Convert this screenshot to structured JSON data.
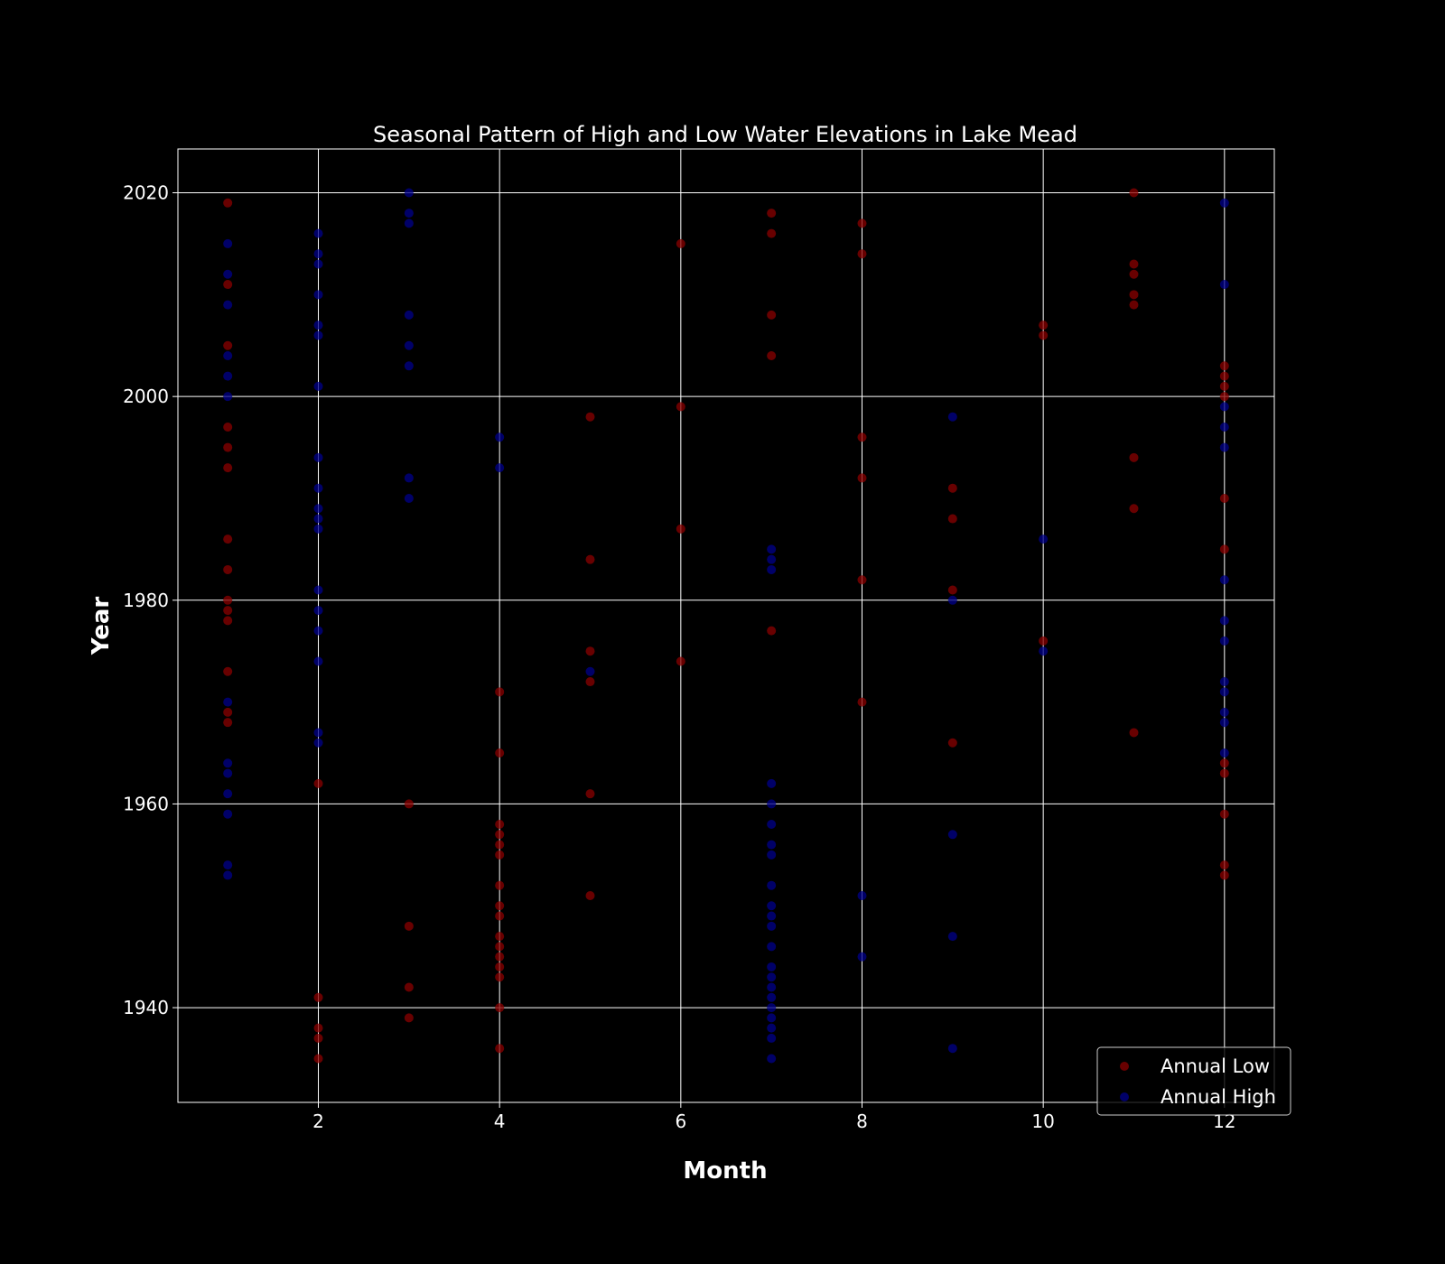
{
  "chart_data": {
    "type": "scatter",
    "title": "Seasonal Pattern of High and Low Water Elevations in Lake Mead",
    "xlabel": "Month",
    "ylabel": "Year",
    "xlim": [
      0.45,
      12.55
    ],
    "ylim": [
      1930.7,
      2024.3
    ],
    "xticks": [
      2,
      4,
      6,
      8,
      10,
      12
    ],
    "yticks": [
      1940,
      1960,
      1980,
      2000,
      2020
    ],
    "grid": true,
    "legend_position": "lower right",
    "background": "#000000",
    "series": [
      {
        "name": "Annual Low",
        "color": "#8b0000",
        "points": [
          [
            1,
            2019
          ],
          [
            1,
            2011
          ],
          [
            1,
            2005
          ],
          [
            1,
            1997
          ],
          [
            1,
            1995
          ],
          [
            1,
            1993
          ],
          [
            1,
            1986
          ],
          [
            1,
            1983
          ],
          [
            1,
            1980
          ],
          [
            1,
            1979
          ],
          [
            1,
            1978
          ],
          [
            1,
            1973
          ],
          [
            1,
            1969
          ],
          [
            1,
            1968
          ],
          [
            2,
            1962
          ],
          [
            2,
            1941
          ],
          [
            2,
            1938
          ],
          [
            2,
            1937
          ],
          [
            2,
            1935
          ],
          [
            3,
            1960
          ],
          [
            3,
            1948
          ],
          [
            3,
            1942
          ],
          [
            3,
            1939
          ],
          [
            4,
            1971
          ],
          [
            4,
            1965
          ],
          [
            4,
            1958
          ],
          [
            4,
            1957
          ],
          [
            4,
            1956
          ],
          [
            4,
            1955
          ],
          [
            4,
            1952
          ],
          [
            4,
            1950
          ],
          [
            4,
            1949
          ],
          [
            4,
            1947
          ],
          [
            4,
            1946
          ],
          [
            4,
            1945
          ],
          [
            4,
            1944
          ],
          [
            4,
            1943
          ],
          [
            4,
            1940
          ],
          [
            4,
            1936
          ],
          [
            5,
            1998
          ],
          [
            5,
            1984
          ],
          [
            5,
            1975
          ],
          [
            5,
            1972
          ],
          [
            5,
            1961
          ],
          [
            5,
            1951
          ],
          [
            6,
            2015
          ],
          [
            6,
            1999
          ],
          [
            6,
            1987
          ],
          [
            6,
            1974
          ],
          [
            7,
            2018
          ],
          [
            7,
            2016
          ],
          [
            7,
            2008
          ],
          [
            7,
            2004
          ],
          [
            7,
            1977
          ],
          [
            8,
            2017
          ],
          [
            8,
            2014
          ],
          [
            8,
            1996
          ],
          [
            8,
            1992
          ],
          [
            8,
            1982
          ],
          [
            8,
            1970
          ],
          [
            9,
            1991
          ],
          [
            9,
            1988
          ],
          [
            9,
            1981
          ],
          [
            9,
            1966
          ],
          [
            10,
            2007
          ],
          [
            10,
            2006
          ],
          [
            10,
            1976
          ],
          [
            11,
            2020
          ],
          [
            11,
            2013
          ],
          [
            11,
            2012
          ],
          [
            11,
            2010
          ],
          [
            11,
            2009
          ],
          [
            11,
            1994
          ],
          [
            11,
            1989
          ],
          [
            11,
            1967
          ],
          [
            12,
            2003
          ],
          [
            12,
            2002
          ],
          [
            12,
            2001
          ],
          [
            12,
            2000
          ],
          [
            12,
            1990
          ],
          [
            12,
            1985
          ],
          [
            12,
            1964
          ],
          [
            12,
            1963
          ],
          [
            12,
            1959
          ],
          [
            12,
            1954
          ],
          [
            12,
            1953
          ]
        ]
      },
      {
        "name": "Annual High",
        "color": "#00008b",
        "points": [
          [
            1,
            2015
          ],
          [
            1,
            2012
          ],
          [
            1,
            2009
          ],
          [
            1,
            2004
          ],
          [
            1,
            2002
          ],
          [
            1,
            2000
          ],
          [
            1,
            1970
          ],
          [
            1,
            1964
          ],
          [
            1,
            1963
          ],
          [
            1,
            1961
          ],
          [
            1,
            1959
          ],
          [
            1,
            1954
          ],
          [
            1,
            1953
          ],
          [
            2,
            2016
          ],
          [
            2,
            2014
          ],
          [
            2,
            2013
          ],
          [
            2,
            2010
          ],
          [
            2,
            2007
          ],
          [
            2,
            2006
          ],
          [
            2,
            2001
          ],
          [
            2,
            1994
          ],
          [
            2,
            1991
          ],
          [
            2,
            1989
          ],
          [
            2,
            1988
          ],
          [
            2,
            1987
          ],
          [
            2,
            1981
          ],
          [
            2,
            1979
          ],
          [
            2,
            1977
          ],
          [
            2,
            1974
          ],
          [
            2,
            1967
          ],
          [
            2,
            1966
          ],
          [
            3,
            2020
          ],
          [
            3,
            2018
          ],
          [
            3,
            2017
          ],
          [
            3,
            2008
          ],
          [
            3,
            2005
          ],
          [
            3,
            2003
          ],
          [
            3,
            1992
          ],
          [
            3,
            1990
          ],
          [
            4,
            1996
          ],
          [
            4,
            1993
          ],
          [
            5,
            1973
          ],
          [
            7,
            1985
          ],
          [
            7,
            1984
          ],
          [
            7,
            1983
          ],
          [
            7,
            1962
          ],
          [
            7,
            1960
          ],
          [
            7,
            1958
          ],
          [
            7,
            1956
          ],
          [
            7,
            1955
          ],
          [
            7,
            1952
          ],
          [
            7,
            1950
          ],
          [
            7,
            1949
          ],
          [
            7,
            1948
          ],
          [
            7,
            1946
          ],
          [
            7,
            1944
          ],
          [
            7,
            1943
          ],
          [
            7,
            1942
          ],
          [
            7,
            1941
          ],
          [
            7,
            1940
          ],
          [
            7,
            1939
          ],
          [
            7,
            1938
          ],
          [
            7,
            1937
          ],
          [
            7,
            1935
          ],
          [
            8,
            1951
          ],
          [
            8,
            1945
          ],
          [
            9,
            1998
          ],
          [
            9,
            1980
          ],
          [
            9,
            1957
          ],
          [
            9,
            1947
          ],
          [
            9,
            1936
          ],
          [
            10,
            1986
          ],
          [
            10,
            1975
          ],
          [
            12,
            2019
          ],
          [
            12,
            2011
          ],
          [
            12,
            1999
          ],
          [
            12,
            1997
          ],
          [
            12,
            1995
          ],
          [
            12,
            1982
          ],
          [
            12,
            1978
          ],
          [
            12,
            1976
          ],
          [
            12,
            1972
          ],
          [
            12,
            1971
          ],
          [
            12,
            1969
          ],
          [
            12,
            1968
          ],
          [
            12,
            1965
          ]
        ]
      }
    ]
  },
  "legend": {
    "items": [
      {
        "label": "Annual Low",
        "color": "#8b0000"
      },
      {
        "label": "Annual High",
        "color": "#00008b"
      }
    ]
  }
}
